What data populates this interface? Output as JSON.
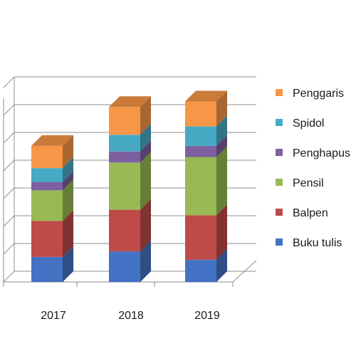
{
  "chart_data": {
    "type": "bar",
    "stacked": true,
    "three_d": true,
    "categories": [
      "2017",
      "2018",
      "2019"
    ],
    "series": [
      {
        "name": "Buku tulis",
        "color": "#4472C4",
        "values": [
          0.9,
          1.1,
          0.8
        ]
      },
      {
        "name": "Balpen",
        "color": "#BE4B48",
        "values": [
          1.3,
          1.5,
          1.6
        ]
      },
      {
        "name": "Pensil",
        "color": "#98B954",
        "values": [
          1.1,
          1.7,
          2.1
        ]
      },
      {
        "name": "Penghapus",
        "color": "#7D60A0",
        "values": [
          0.3,
          0.4,
          0.4
        ]
      },
      {
        "name": "Spidol",
        "color": "#46AAC5",
        "values": [
          0.5,
          0.6,
          0.7
        ]
      },
      {
        "name": "Penggaris",
        "color": "#F79646",
        "values": [
          0.8,
          1.0,
          0.9
        ]
      }
    ],
    "ylim": [
      0,
      7
    ],
    "y_gridlines": 7,
    "y_tick_labels_shown": false,
    "grid": true,
    "legend": "right",
    "title": "",
    "xlabel": "",
    "ylabel": ""
  }
}
